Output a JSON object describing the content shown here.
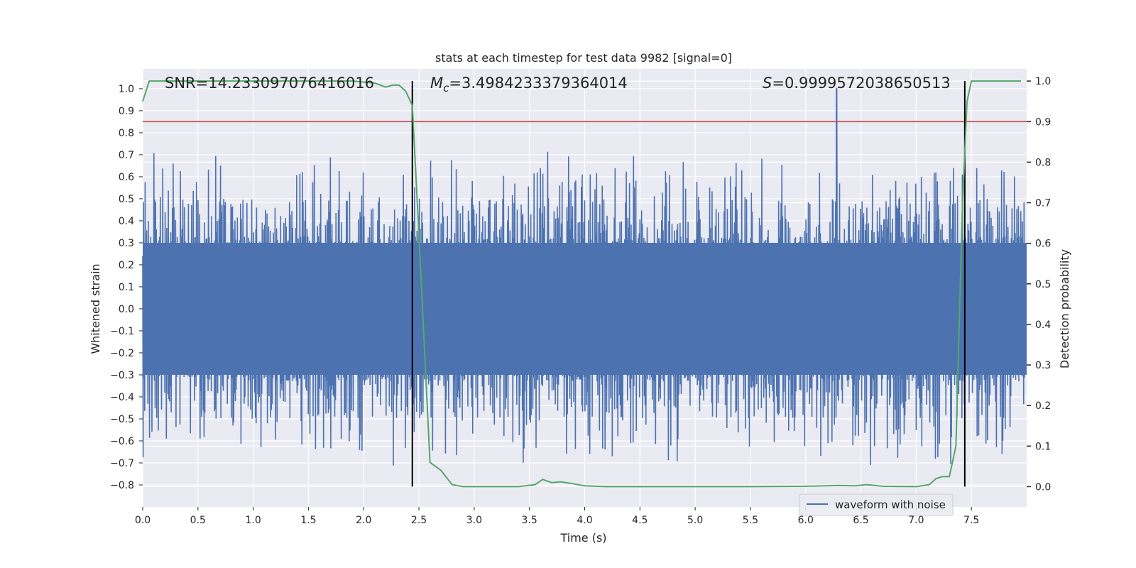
{
  "chart_data": {
    "type": "line",
    "title": "stats at each timestep for test data 9982 [signal=0]",
    "xlabel": "Time (s)",
    "ylabel_left": "Whitened strain",
    "ylabel_right": "Detection probability",
    "xlim": [
      0.0,
      8.0
    ],
    "ylim_left": [
      -0.9,
      1.09
    ],
    "ylim_right": [
      -0.05,
      1.03
    ],
    "x_ticks": [
      "0.0",
      "0.5",
      "1.0",
      "1.5",
      "2.0",
      "2.5",
      "3.0",
      "3.5",
      "4.0",
      "4.5",
      "5.0",
      "5.5",
      "6.0",
      "6.5",
      "7.0",
      "7.5"
    ],
    "y_left_ticks": [
      "−0.8",
      "−0.7",
      "−0.6",
      "−0.5",
      "−0.4",
      "−0.3",
      "−0.2",
      "−0.1",
      "0.0",
      "0.1",
      "0.2",
      "0.3",
      "0.4",
      "0.5",
      "0.6",
      "0.7",
      "0.8",
      "0.9",
      "1.0"
    ],
    "y_right_ticks": [
      "0.0",
      "0.1",
      "0.2",
      "0.3",
      "0.4",
      "0.5",
      "0.6",
      "0.7",
      "0.8",
      "0.9",
      "1.0"
    ],
    "grid": true,
    "legend": {
      "location": "lower-right",
      "entries": [
        "waveform with noise"
      ]
    },
    "annotations": {
      "snr": "SNR=14.233097076416016",
      "mc_prefix": "M",
      "mc_sub": "c",
      "mc_value": "=3.4984233379364014",
      "s_prefix": "S",
      "s_value": "=0.9999572038650513"
    },
    "threshold_right": 0.9,
    "vertical_lines_x": [
      2.44,
      7.44
    ],
    "waveform": {
      "name": "waveform with noise",
      "color": "#4c72b0",
      "core_amplitude": 0.3,
      "max_value": 1.0,
      "max_at_x": 6.28
    },
    "probability": {
      "color": "#55a868",
      "x": [
        0.0,
        0.06,
        0.12,
        0.5,
        1.0,
        1.5,
        1.9,
        2.1,
        2.2,
        2.26,
        2.32,
        2.38,
        2.44,
        2.5,
        2.6,
        2.7,
        2.8,
        2.9,
        3.0,
        3.2,
        3.4,
        3.55,
        3.62,
        3.7,
        3.78,
        3.88,
        4.0,
        4.2,
        4.5,
        5.0,
        5.5,
        6.0,
        6.3,
        6.45,
        6.55,
        6.7,
        7.0,
        7.12,
        7.18,
        7.24,
        7.3,
        7.36,
        7.42,
        7.46,
        7.5,
        7.6,
        7.8,
        7.95
      ],
      "y": [
        0.95,
        1.0,
        1.0,
        1.0,
        1.0,
        1.0,
        1.0,
        0.995,
        0.985,
        0.99,
        0.99,
        0.975,
        0.94,
        0.62,
        0.06,
        0.04,
        0.005,
        0.0,
        0.0,
        0.0,
        0.0,
        0.005,
        0.018,
        0.01,
        0.012,
        0.008,
        0.002,
        0.0,
        0.0,
        0.0,
        0.0,
        0.001,
        0.003,
        0.002,
        0.005,
        0.001,
        0.0,
        0.005,
        0.02,
        0.025,
        0.025,
        0.1,
        0.7,
        0.95,
        1.0,
        1.0,
        1.0,
        1.0
      ]
    },
    "colors": {
      "background": "#eaeaf2",
      "grid": "#ffffff",
      "threshold": "#c44e52",
      "vline": "#000000"
    }
  }
}
